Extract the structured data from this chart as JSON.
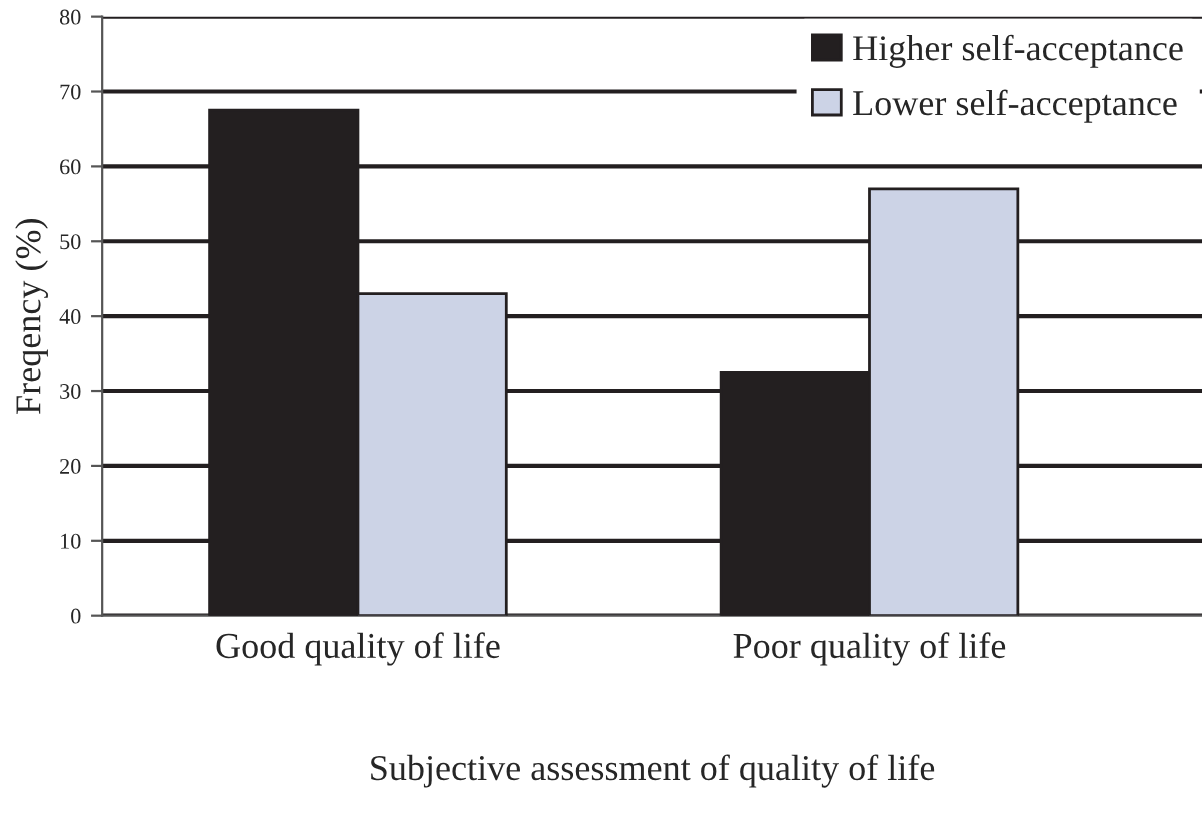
{
  "chart_data": {
    "type": "bar",
    "xlabel": "Subjective assessment of quality of life",
    "ylabel": "Freqency (%)",
    "categories": [
      "Good quality of life",
      "Poor quality of life"
    ],
    "series": [
      {
        "name": "Higher self-acceptance",
        "color": "#231f20",
        "values": [
          67.5,
          32.5
        ]
      },
      {
        "name": "Lower self-acceptance",
        "color": "#ccd3e6",
        "values": [
          43,
          57
        ]
      }
    ],
    "ylim": [
      0,
      80
    ],
    "yticks": [
      0,
      10,
      20,
      30,
      40,
      50,
      60,
      70,
      80
    ],
    "grid": "y",
    "legend": "top right"
  }
}
